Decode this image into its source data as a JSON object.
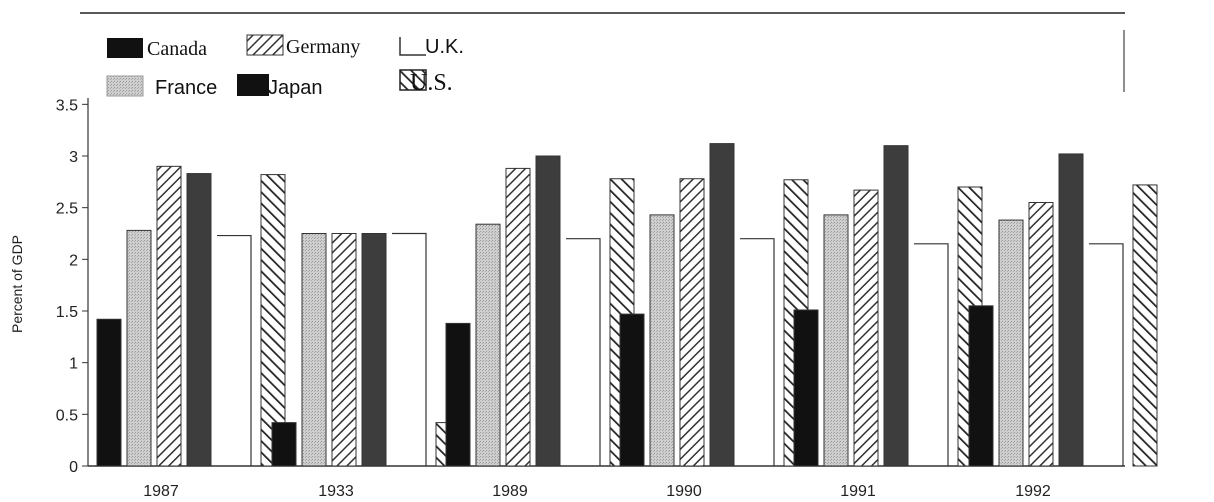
{
  "chart_data": {
    "type": "bar",
    "title": "",
    "xlabel": "",
    "ylabel": "Percent of GDP",
    "ylim": [
      0,
      3.5
    ],
    "yticks": [
      "0",
      "0.5",
      "1",
      "1.5",
      "2",
      "2.5",
      "3",
      "3.5"
    ],
    "grid": false,
    "legend_position": "top-left",
    "categories": [
      "1987",
      "1933",
      "1989",
      "1990",
      "1991",
      "1992"
    ],
    "series": [
      {
        "name": "Canada",
        "pattern": "solid-black",
        "color": "#111111",
        "values": [
          1.42,
          0.42,
          1.38,
          1.47,
          1.51,
          1.55
        ]
      },
      {
        "name": "France",
        "pattern": "stipple-light",
        "color": "#c6c6c6",
        "values": [
          2.28,
          2.25,
          2.34,
          2.43,
          2.43,
          2.38
        ]
      },
      {
        "name": "Germany",
        "pattern": "hatch",
        "color": "#555555",
        "values": [
          2.9,
          2.25,
          2.88,
          2.78,
          2.67,
          2.55
        ]
      },
      {
        "name": "Japan",
        "pattern": "solid-dark",
        "color": "#3a3a3a",
        "values": [
          2.83,
          2.25,
          3.0,
          3.12,
          3.1,
          3.02
        ]
      },
      {
        "name": "U.K.",
        "pattern": "outline",
        "color": "#ffffff",
        "values": [
          2.23,
          2.25,
          2.2,
          2.2,
          2.15,
          2.15
        ]
      },
      {
        "name": "U.S.",
        "pattern": "hatch-bold",
        "color": "#333333",
        "values": [
          2.82,
          0.42,
          2.78,
          2.77,
          2.7,
          2.72
        ]
      }
    ]
  },
  "legend": {
    "canada": "Canada",
    "germany": "Germany",
    "uk": "U.K.",
    "france": "France",
    "japan": "Japan",
    "us": "U.S."
  }
}
